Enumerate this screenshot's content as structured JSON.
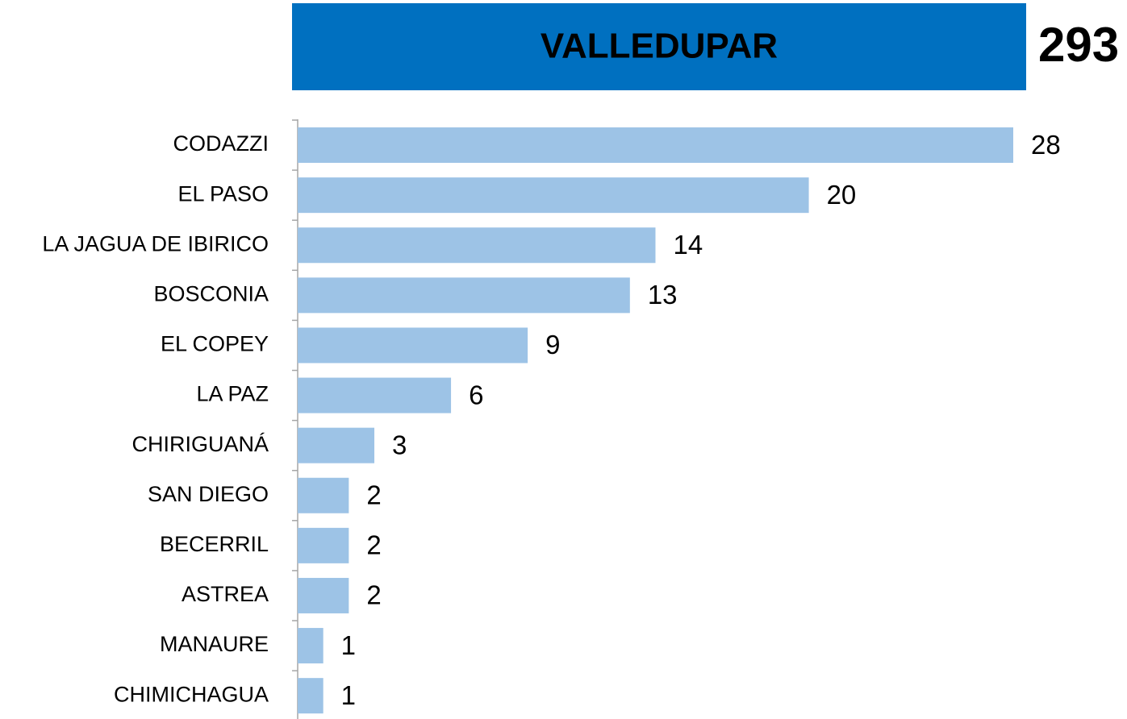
{
  "chart_data": {
    "type": "bar",
    "orientation": "horizontal",
    "header": {
      "label": "VALLEDUPAR",
      "value": 293,
      "color": "#0070c0"
    },
    "categories": [
      "CODAZZI",
      "EL PASO",
      "LA JAGUA DE IBIRICO",
      "BOSCONIA",
      "EL COPEY",
      "LA PAZ",
      "CHIRIGUANÁ",
      "SAN DIEGO",
      "BECERRIL",
      "ASTREA",
      "MANAURE",
      "CHIMICHAGUA"
    ],
    "values": [
      28,
      20,
      14,
      13,
      9,
      6,
      3,
      2,
      2,
      2,
      1,
      1
    ],
    "color": "#9dc3e6",
    "xlim": [
      0,
      28
    ]
  }
}
